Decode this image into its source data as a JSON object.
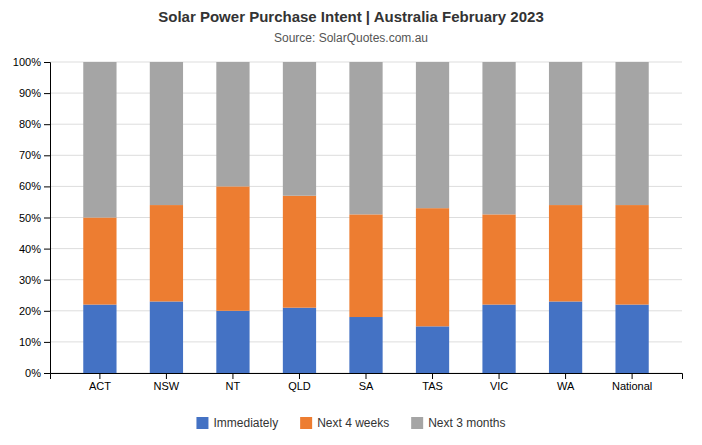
{
  "chart_data": {
    "type": "bar",
    "stacked": true,
    "title": "Solar Power Purchase Intent | Australia February 2023",
    "subtitle": "Source: SolarQuotes.com.au",
    "categories": [
      "ACT",
      "NSW",
      "NT",
      "QLD",
      "SA",
      "TAS",
      "VIC",
      "WA",
      "National"
    ],
    "series": [
      {
        "name": "Immediately",
        "color": "#4472C4",
        "values": [
          22,
          23,
          20,
          21,
          18,
          15,
          22,
          23,
          22
        ]
      },
      {
        "name": "Next 4 weeks",
        "color": "#ED7D31",
        "values": [
          28,
          31,
          40,
          36,
          33,
          38,
          29,
          31,
          32
        ]
      },
      {
        "name": "Next 3 months",
        "color": "#A5A5A5",
        "values": [
          50,
          46,
          40,
          43,
          49,
          47,
          49,
          46,
          46
        ]
      }
    ],
    "ylim": [
      0,
      100
    ],
    "yticks": [
      {
        "value": 0,
        "label": "0%"
      },
      {
        "value": 10,
        "label": "10%"
      },
      {
        "value": 20,
        "label": "20%"
      },
      {
        "value": 30,
        "label": "30%"
      },
      {
        "value": 40,
        "label": "40%"
      },
      {
        "value": 50,
        "label": "50%"
      },
      {
        "value": 60,
        "label": "60%"
      },
      {
        "value": 70,
        "label": "70%"
      },
      {
        "value": 80,
        "label": "80%"
      },
      {
        "value": 90,
        "label": "90%"
      },
      {
        "value": 100,
        "label": "100%"
      }
    ],
    "grid": true,
    "legend": "bottom"
  }
}
